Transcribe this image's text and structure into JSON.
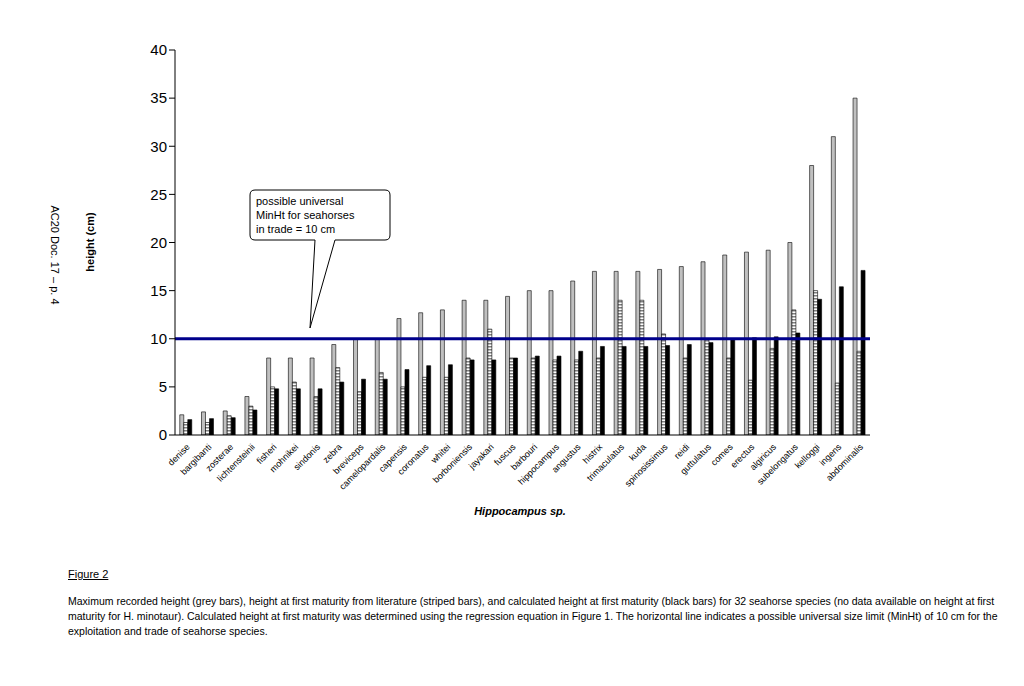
{
  "chart_data": {
    "type": "bar",
    "x_label": "Hippocampus sp.",
    "y_label": "height (cm)",
    "categories": [
      "denise",
      "bargibanti",
      "zosterae",
      "lichtensteinii",
      "fisheri",
      "mohnikei",
      "sindonis",
      "zebra",
      "breviceps",
      "camelopardalis",
      "capensis",
      "coronatus",
      "whitei",
      "borboniensis",
      "jayakari",
      "fuscus",
      "barbouri",
      "hippocampus",
      "angustus",
      "histrix",
      "trimaculatus",
      "kuda",
      "spinosissimus",
      "reidi",
      "guttulatus",
      "comes",
      "erectus",
      "algiricus",
      "subelongatus",
      "kelloggi",
      "ingens",
      "abdominalis"
    ],
    "series": [
      {
        "color": "#c0c0c0",
        "line_style": "solid",
        "values": [
          2.1,
          2.4,
          2.5,
          4.0,
          8.0,
          8.0,
          8.0,
          9.4,
          10.0,
          10.0,
          12.1,
          12.7,
          13.0,
          14.0,
          14.0,
          14.4,
          15.0,
          15.0,
          16.0,
          17.0,
          17.0,
          17.0,
          17.2,
          17.5,
          18.0,
          18.7,
          19.0,
          19.2,
          20.0,
          28.0,
          31.0,
          35.0
        ]
      },
      {
        "color": "#808080",
        "line_style": "striped",
        "values": [
          1.3,
          1.3,
          2.0,
          3.0,
          5.0,
          5.5,
          4.0,
          7.0,
          4.5,
          6.5,
          5.0,
          6.0,
          6.0,
          8.0,
          11.0,
          8.0,
          8.0,
          7.8,
          7.8,
          8.0,
          14.0,
          14.0,
          10.5,
          8.0,
          10.0,
          8.0,
          5.7,
          9.0,
          13.0,
          15.0,
          5.4,
          8.7
        ]
      },
      {
        "color": "#000000",
        "line_style": "solid",
        "values": [
          1.6,
          1.7,
          1.8,
          2.6,
          4.8,
          4.8,
          4.8,
          5.5,
          5.8,
          5.8,
          6.8,
          7.2,
          7.3,
          7.8,
          7.8,
          8.0,
          8.2,
          8.2,
          8.7,
          9.2,
          9.2,
          9.2,
          9.3,
          9.4,
          9.6,
          10.0,
          10.1,
          10.2,
          10.6,
          14.1,
          15.4,
          17.1
        ]
      }
    ],
    "ylim": [
      0,
      40
    ],
    "yticks": [
      0,
      5,
      10,
      15,
      20,
      25,
      30,
      35,
      40
    ],
    "grid": false,
    "hlines": [
      {
        "y": 10,
        "color": "#00008b"
      }
    ],
    "annotations": [
      {
        "lines": [
          "possible universal",
          "MinHt for seahorses",
          "in trade = 10 cm"
        ]
      }
    ]
  },
  "page": {
    "side_text": "AC20 Doc. 17 – p. 4",
    "figure_label": "Figure 2",
    "caption": "Maximum recorded height (grey bars), height at first maturity from literature (striped bars), and calculated height at first maturity (black bars) for 32 seahorse species (no data available on height at first maturity for H. minotaur). Calculated height at first maturity was determined using the regression equation in Figure 1. The horizontal line indicates a possible universal size limit (MinHt) of 10 cm for the exploitation and trade of seahorse species."
  }
}
